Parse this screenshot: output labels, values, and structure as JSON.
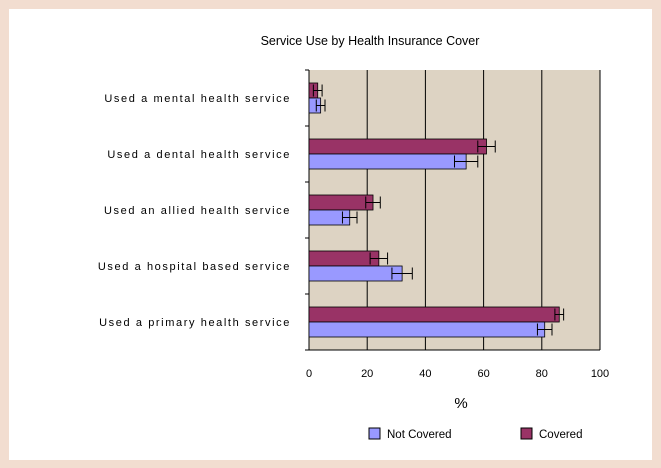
{
  "chart_data": {
    "type": "bar",
    "orientation": "horizontal",
    "title": "Service Use by Health Insurance Cover",
    "xlabel": "%",
    "ylabel": "",
    "xlim": [
      0,
      100
    ],
    "xticks": [
      "0",
      "20",
      "40",
      "60",
      "80",
      "100"
    ],
    "grid": "vertical",
    "legend_position": "bottom",
    "categories": [
      "Used a mental health service",
      "Used a dental health  service",
      "Used an allied health service",
      "Used a hospital based  service",
      "Used a primary  health  service"
    ],
    "series": [
      {
        "name": "Covered",
        "color": "#993366",
        "values": [
          3,
          61,
          22,
          24,
          86
        ],
        "error": [
          1.5,
          3,
          2.5,
          3,
          1.5
        ]
      },
      {
        "name": "Not Covered",
        "color": "#9999ff",
        "values": [
          4,
          54,
          14,
          32,
          81
        ],
        "error": [
          1.5,
          4,
          2.5,
          3.5,
          2.5
        ]
      }
    ],
    "plot_background": "#ddd3c3"
  }
}
